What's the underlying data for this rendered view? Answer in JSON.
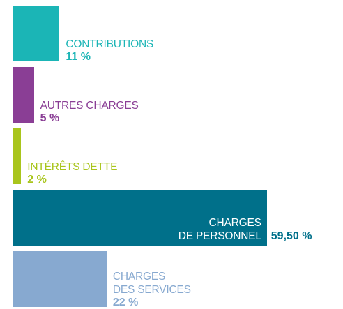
{
  "chart_data": {
    "type": "bar",
    "categories": [
      "CONTRIBUTIONS",
      "AUTRES CHARGES",
      "INTÉRÊTS DETTE",
      "CHARGES\nDE PERSONNEL",
      "CHARGES\nDES SERVICES"
    ],
    "values": [
      11,
      5,
      2,
      59.5,
      22
    ],
    "value_labels": [
      "11 %",
      "5 %",
      "2 %",
      "59,50 %",
      "22 %"
    ],
    "colors": [
      "#1bb5b6",
      "#8a3e95",
      "#a9c51c",
      "#00708a",
      "#87a9d0"
    ]
  }
}
